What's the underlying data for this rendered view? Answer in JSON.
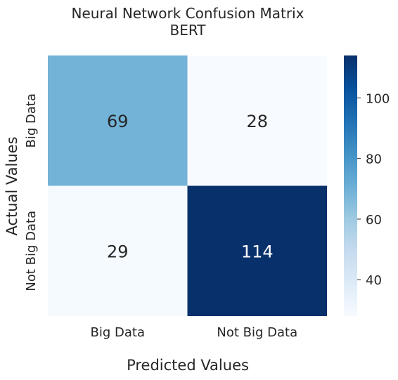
{
  "chart_data": {
    "type": "heatmap",
    "title": "Neural Network Confusion Matrix",
    "subtitle": "BERT",
    "xlabel": "Predicted Values",
    "ylabel": "Actual Values",
    "x_categories": [
      "Big Data",
      "Not Big Data"
    ],
    "y_categories": [
      "Big Data",
      "Not Big Data"
    ],
    "values": [
      [
        69,
        28
      ],
      [
        29,
        114
      ]
    ],
    "colormap": "Blues",
    "colorbar": {
      "vmin": 28,
      "vmax": 114,
      "ticks": [
        40,
        60,
        80,
        100
      ]
    },
    "grid": false
  }
}
